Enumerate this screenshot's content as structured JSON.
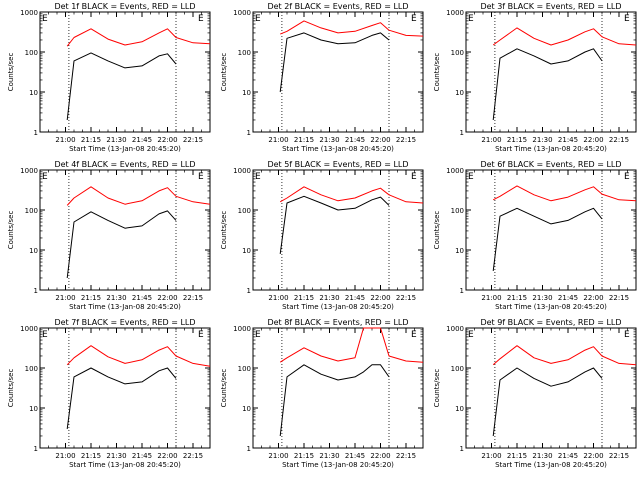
{
  "figure": {
    "xlabel": "Start Time (13-Jan-08 20:45:20)",
    "ylabel": "Counts/sec",
    "xticks": [
      "21:00",
      "21:15",
      "21:30",
      "21:45",
      "22:00",
      "22:15"
    ],
    "yticks": [
      "1",
      "10",
      "100",
      "1000"
    ],
    "marker": "E",
    "colors": {
      "events": "#000000",
      "lld": "#ff0000"
    }
  },
  "chart_data": [
    {
      "type": "line",
      "title": "Det 1f BLACK = Events, RED = LLD",
      "xlim": [
        "20:45",
        "22:25"
      ],
      "ylim": [
        1,
        1000
      ],
      "yscale": "log",
      "dotted_lines_at": [
        "21:02",
        "22:05"
      ],
      "x": [
        "21:01",
        "21:05",
        "21:15",
        "21:25",
        "21:35",
        "21:45",
        "21:55",
        "22:00",
        "22:05",
        "22:15",
        "22:25"
      ],
      "series": [
        {
          "name": "Events",
          "values": [
            2,
            60,
            95,
            60,
            40,
            45,
            80,
            90,
            50,
            null,
            null
          ]
        },
        {
          "name": "LLD",
          "values": [
            140,
            230,
            380,
            210,
            150,
            180,
            300,
            380,
            230,
            170,
            160
          ]
        }
      ]
    },
    {
      "type": "line",
      "title": "Det 2f BLACK = Events, RED = LLD",
      "xlim": [
        "20:45",
        "22:25"
      ],
      "ylim": [
        1,
        1000
      ],
      "yscale": "log",
      "dotted_lines_at": [
        "21:02",
        "22:05"
      ],
      "x": [
        "21:01",
        "21:05",
        "21:15",
        "21:25",
        "21:35",
        "21:45",
        "21:55",
        "22:00",
        "22:05",
        "22:15",
        "22:25"
      ],
      "series": [
        {
          "name": "Events",
          "values": [
            10,
            220,
            300,
            200,
            160,
            170,
            260,
            300,
            200,
            null,
            null
          ]
        },
        {
          "name": "LLD",
          "values": [
            280,
            330,
            600,
            400,
            300,
            330,
            460,
            540,
            350,
            260,
            250
          ]
        }
      ]
    },
    {
      "type": "line",
      "title": "Det 3f BLACK = Events, RED = LLD",
      "xlim": [
        "20:45",
        "22:25"
      ],
      "ylim": [
        1,
        1000
      ],
      "yscale": "log",
      "dotted_lines_at": [
        "21:02",
        "22:05"
      ],
      "x": [
        "21:01",
        "21:05",
        "21:15",
        "21:25",
        "21:35",
        "21:45",
        "21:55",
        "22:00",
        "22:05",
        "22:15",
        "22:25"
      ],
      "series": [
        {
          "name": "Events",
          "values": [
            2,
            70,
            120,
            80,
            50,
            60,
            100,
            120,
            60,
            null,
            null
          ]
        },
        {
          "name": "LLD",
          "values": [
            150,
            200,
            400,
            220,
            150,
            200,
            320,
            380,
            240,
            160,
            150
          ]
        }
      ]
    },
    {
      "type": "line",
      "title": "Det 4f BLACK = Events, RED = LLD",
      "xlim": [
        "20:45",
        "22:25"
      ],
      "ylim": [
        1,
        1000
      ],
      "yscale": "log",
      "dotted_lines_at": [
        "21:02",
        "22:05"
      ],
      "x": [
        "21:01",
        "21:05",
        "21:15",
        "21:25",
        "21:35",
        "21:45",
        "21:55",
        "22:00",
        "22:05",
        "22:15",
        "22:25"
      ],
      "series": [
        {
          "name": "Events",
          "values": [
            2,
            50,
            90,
            55,
            35,
            40,
            80,
            95,
            55,
            null,
            null
          ]
        },
        {
          "name": "LLD",
          "values": [
            130,
            200,
            380,
            200,
            140,
            170,
            300,
            360,
            220,
            160,
            140
          ]
        }
      ]
    },
    {
      "type": "line",
      "title": "Det 5f BLACK = Events, RED = LLD",
      "xlim": [
        "20:45",
        "22:25"
      ],
      "ylim": [
        1,
        1000
      ],
      "yscale": "log",
      "dotted_lines_at": [
        "21:02",
        "22:05"
      ],
      "x": [
        "21:01",
        "21:05",
        "21:15",
        "21:25",
        "21:35",
        "21:45",
        "21:55",
        "22:00",
        "22:05",
        "22:15",
        "22:25"
      ],
      "series": [
        {
          "name": "Events",
          "values": [
            8,
            150,
            220,
            150,
            100,
            110,
            180,
            210,
            130,
            null,
            null
          ]
        },
        {
          "name": "LLD",
          "values": [
            160,
            200,
            380,
            240,
            170,
            200,
            300,
            350,
            240,
            160,
            150
          ]
        }
      ]
    },
    {
      "type": "line",
      "title": "Det 6f BLACK = Events, RED = LLD",
      "xlim": [
        "20:45",
        "22:25"
      ],
      "ylim": [
        1,
        1000
      ],
      "yscale": "log",
      "dotted_lines_at": [
        "21:02",
        "22:05"
      ],
      "x": [
        "21:01",
        "21:05",
        "21:15",
        "21:25",
        "21:35",
        "21:45",
        "21:55",
        "22:00",
        "22:05",
        "22:15",
        "22:25"
      ],
      "series": [
        {
          "name": "Events",
          "values": [
            3,
            70,
            110,
            70,
            45,
            55,
            90,
            110,
            60,
            null,
            null
          ]
        },
        {
          "name": "LLD",
          "values": [
            180,
            220,
            400,
            240,
            170,
            210,
            320,
            380,
            250,
            180,
            170
          ]
        }
      ]
    },
    {
      "type": "line",
      "title": "Det 7f BLACK = Events, RED = LLD",
      "xlim": [
        "20:45",
        "22:25"
      ],
      "ylim": [
        1,
        1000
      ],
      "yscale": "log",
      "dotted_lines_at": [
        "21:02",
        "22:05"
      ],
      "x": [
        "21:01",
        "21:05",
        "21:15",
        "21:25",
        "21:35",
        "21:45",
        "21:55",
        "22:00",
        "22:05",
        "22:15",
        "22:25"
      ],
      "series": [
        {
          "name": "Events",
          "values": [
            3,
            60,
            100,
            60,
            40,
            45,
            85,
            100,
            55,
            null,
            null
          ]
        },
        {
          "name": "LLD",
          "values": [
            120,
            180,
            360,
            190,
            130,
            160,
            280,
            340,
            200,
            130,
            110
          ]
        }
      ]
    },
    {
      "type": "line",
      "title": "Det 8f BLACK = Events, RED = LLD",
      "xlim": [
        "20:45",
        "22:25"
      ],
      "ylim": [
        1,
        1000
      ],
      "yscale": "log",
      "dotted_lines_at": [
        "21:02",
        "22:05"
      ],
      "x": [
        "21:01",
        "21:05",
        "21:15",
        "21:25",
        "21:35",
        "21:45",
        "21:50",
        "21:55",
        "22:00",
        "22:05",
        "22:15",
        "22:25"
      ],
      "series": [
        {
          "name": "Events",
          "values": [
            2,
            60,
            120,
            70,
            50,
            60,
            80,
            120,
            120,
            60,
            null,
            null
          ]
        },
        {
          "name": "LLD",
          "values": [
            140,
            180,
            320,
            200,
            150,
            180,
            1000,
            1000,
            1000,
            200,
            150,
            140
          ]
        }
      ]
    },
    {
      "type": "line",
      "title": "Det 9f BLACK = Events, RED = LLD",
      "xlim": [
        "20:45",
        "22:25"
      ],
      "ylim": [
        1,
        1000
      ],
      "yscale": "log",
      "dotted_lines_at": [
        "21:02",
        "22:05"
      ],
      "x": [
        "21:01",
        "21:05",
        "21:15",
        "21:25",
        "21:35",
        "21:45",
        "21:55",
        "22:00",
        "22:05",
        "22:15",
        "22:25"
      ],
      "series": [
        {
          "name": "Events",
          "values": [
            2,
            50,
            100,
            55,
            35,
            45,
            80,
            100,
            55,
            null,
            null
          ]
        },
        {
          "name": "LLD",
          "values": [
            120,
            170,
            360,
            180,
            130,
            160,
            280,
            340,
            200,
            130,
            120
          ]
        }
      ]
    }
  ]
}
